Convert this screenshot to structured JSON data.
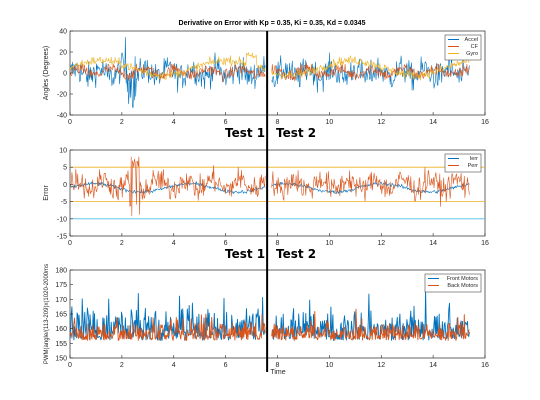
{
  "chart_data": [
    {
      "type": "line",
      "title": "Derivative on Error with Kp = 0.35, Ki = 0.35, Kd = 0.0345",
      "xlabel": "",
      "ylabel": "Angles (Degrees)",
      "xlim": [
        0,
        16
      ],
      "ylim": [
        -40,
        40
      ],
      "xticks": [
        "0",
        "2",
        "4",
        "6",
        "8",
        "10",
        "12",
        "14",
        "16"
      ],
      "yticks": [
        "-40",
        "-20",
        "0",
        "20",
        "40"
      ],
      "grid": false,
      "legend_position": "top-right",
      "series": [
        {
          "name": "Accel",
          "color": "#0072BD",
          "values_summary": {
            "range": [
              -38,
              40
            ],
            "mean": 0,
            "samples_per_unit": 14
          }
        },
        {
          "name": "CF",
          "color": "#D95319",
          "values_summary": {
            "range": [
              -15,
              15
            ],
            "mean": 1,
            "samples_per_unit": 14
          }
        },
        {
          "name": "Gyro",
          "color": "#EDB120",
          "values_summary": {
            "range": [
              -5,
              22
            ],
            "mean": 5,
            "samples_per_unit": 14
          }
        }
      ]
    },
    {
      "type": "line",
      "title": "",
      "xlabel": "",
      "ylabel": "Error",
      "xlim": [
        0,
        16
      ],
      "ylim": [
        -15,
        10
      ],
      "xticks": [
        "0",
        "2",
        "4",
        "6",
        "8",
        "10",
        "12",
        "14",
        "16"
      ],
      "yticks": [
        "-15",
        "-10",
        "-5",
        "0",
        "5",
        "10"
      ],
      "grid": false,
      "legend_position": "top-right",
      "reference_lines": [
        {
          "y": 5,
          "color": "#EDB120"
        },
        {
          "y": -5,
          "color": "#EDB120"
        },
        {
          "y": -10,
          "color": "#4DBEEE"
        }
      ],
      "series": [
        {
          "name": "Ierr",
          "color": "#0072BD",
          "values_summary": {
            "range": [
              -3,
              1
            ],
            "mean": -1
          }
        },
        {
          "name": "Perr",
          "color": "#D95319",
          "values_summary": {
            "range": [
              -12,
              8
            ],
            "mean": 0
          }
        }
      ]
    },
    {
      "type": "line",
      "title": "",
      "xlabel": "Time",
      "ylabel": "PWM(angle/(113-209)x(1020-2000ms",
      "xlim": [
        0,
        16
      ],
      "ylim": [
        150,
        180
      ],
      "xticks": [
        "0",
        "2",
        "4",
        "6",
        "8",
        "10",
        "12",
        "14",
        "16"
      ],
      "yticks": [
        "150",
        "155",
        "160",
        "165",
        "170",
        "175",
        "180"
      ],
      "grid": false,
      "legend_position": "top-right",
      "series": [
        {
          "name": "Front Motors",
          "color": "#0072BD",
          "values_summary": {
            "range": [
              155,
              180
            ],
            "mean": 160
          }
        },
        {
          "name": "Back Motors",
          "color": "#D95319",
          "values_summary": {
            "range": [
              155,
              172
            ],
            "mean": 159
          }
        }
      ]
    }
  ],
  "annotations": {
    "divider_x": 7.6,
    "test1_label": "Test 1",
    "test2_label": "Test 2"
  }
}
